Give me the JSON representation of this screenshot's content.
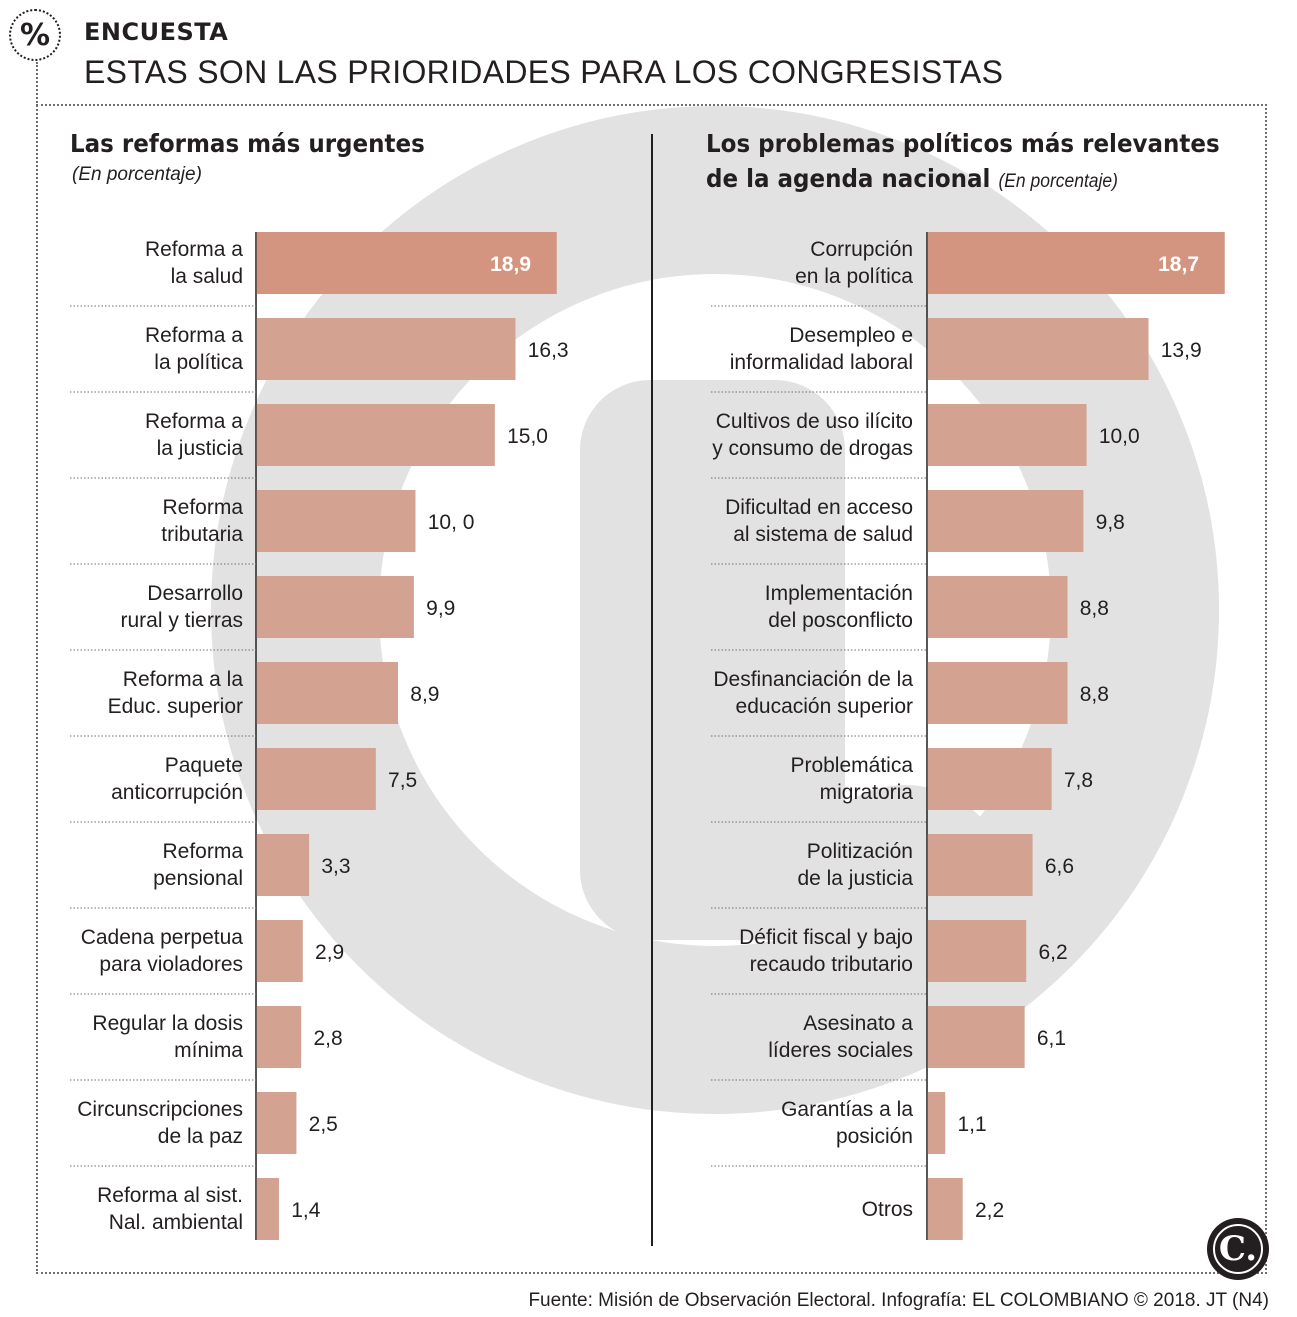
{
  "header": {
    "badge_symbol": "%",
    "kicker": "ENCUESTA",
    "headline": "ESTAS SON LAS PRIORIDADES PARA LOS CONGRESISTAS"
  },
  "chart_data": [
    {
      "type": "bar",
      "orientation": "horizontal",
      "title": "Las reformas más urgentes",
      "subtitle": "(En porcentaje)",
      "categories": [
        [
          "Reforma a",
          "la salud"
        ],
        [
          "Reforma a",
          "la política"
        ],
        [
          "Reforma a",
          "la justicia"
        ],
        [
          "Reforma",
          "tributaria"
        ],
        [
          "Desarrollo",
          "rural y tierras"
        ],
        [
          "Reforma a la",
          "Educ. superior"
        ],
        [
          "Paquete",
          "anticorrupción"
        ],
        [
          "Reforma",
          "pensional"
        ],
        [
          "Cadena perpetua",
          "para violadores"
        ],
        [
          "Regular la dosis",
          "mínima"
        ],
        [
          "Circunscripciones",
          "de la paz"
        ],
        [
          "Reforma al sist.",
          "Nal. ambiental"
        ]
      ],
      "values": [
        18.9,
        16.3,
        15.0,
        10.0,
        9.9,
        8.9,
        7.5,
        3.3,
        2.9,
        2.8,
        2.5,
        1.4
      ],
      "value_labels": [
        "18,9",
        "16,3",
        "15,0",
        "10, 0",
        "9,9",
        "8,9",
        "7,5",
        "3,3",
        "2,9",
        "2,8",
        "2,5",
        "1,4"
      ],
      "highlight_index": 0,
      "xlim": [
        0,
        18.9
      ]
    },
    {
      "type": "bar",
      "orientation": "horizontal",
      "title_lines": [
        "Los problemas políticos más relevantes",
        "de la agenda nacional"
      ],
      "subtitle": "(En porcentaje)",
      "categories": [
        [
          "Corrupción",
          "en la política"
        ],
        [
          "Desempleo e",
          "informalidad laboral"
        ],
        [
          "Cultivos de uso ilícito",
          "y consumo de drogas"
        ],
        [
          "Dificultad en acceso",
          "al sistema de salud"
        ],
        [
          "Implementación",
          "del posconflicto"
        ],
        [
          "Desfinanciación de la",
          "educación superior"
        ],
        [
          "Problemática",
          "migratoria"
        ],
        [
          "Politización",
          "de la justicia"
        ],
        [
          "Déficit fiscal y bajo",
          "recaudo tributario"
        ],
        [
          "Asesinato a",
          "líderes sociales"
        ],
        [
          "Garantías a la",
          "posición"
        ],
        [
          "Otros"
        ]
      ],
      "values": [
        18.7,
        13.9,
        10.0,
        9.8,
        8.8,
        8.8,
        7.8,
        6.6,
        6.2,
        6.1,
        1.1,
        2.2
      ],
      "value_labels": [
        "18,7",
        "13,9",
        "10,0",
        "9,8",
        "8,8",
        "8,8",
        "7,8",
        "6,6",
        "6,2",
        "6,1",
        "1,1",
        "2,2"
      ],
      "highlight_index": 0,
      "xlim": [
        0,
        18.7
      ]
    }
  ],
  "colors": {
    "bar": "#d4a290",
    "bar_highlight": "#d49580",
    "text": "#231f20",
    "watermark": "#e2e2e3"
  },
  "footer": {
    "source": "Fuente: Misión de Observación Electoral. Infografía: EL COLOMBIANO © 2018. JT (N4)",
    "logo_letter": "C."
  }
}
